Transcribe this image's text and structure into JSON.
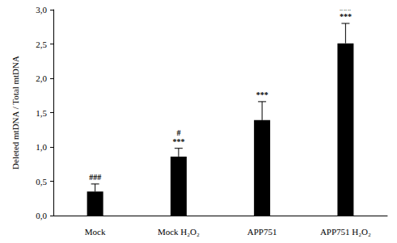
{
  "chart_data": {
    "type": "bar",
    "y_label": "Deleted mtDNA / Total mtDNA",
    "categories": [
      "Mock",
      "Mock H₂O₂",
      "APP751",
      "APP751 H₂O₂"
    ],
    "values": [
      0.35,
      0.86,
      1.39,
      2.51
    ],
    "errors": [
      0.11,
      0.12,
      0.27,
      0.29
    ],
    "annotations": [
      [
        "###"
      ],
      [
        "#",
        "***"
      ],
      [
        "***"
      ],
      [
        "###",
        "***"
      ]
    ],
    "color": "#000000",
    "ylim": [
      0,
      3
    ],
    "yticks": [
      {
        "value": 0,
        "label": "0,0"
      },
      {
        "value": 0.5,
        "label": "0,5"
      },
      {
        "value": 1,
        "label": "1,0"
      },
      {
        "value": 1.5,
        "label": "1,5"
      },
      {
        "value": 2,
        "label": "2,0"
      },
      {
        "value": 2.5,
        "label": "2,5"
      },
      {
        "value": 3,
        "label": "3,0"
      }
    ],
    "grid": false
  }
}
